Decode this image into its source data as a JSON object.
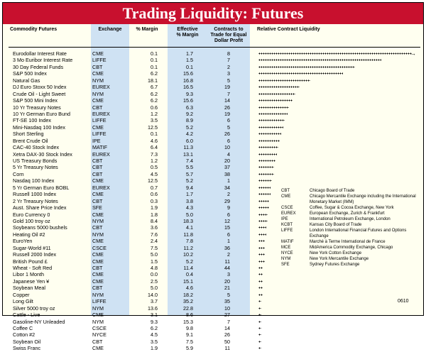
{
  "title": "Trading Liquidity: Futures",
  "headers": {
    "commodity": "Commodity Futures",
    "exchange": "Exchange",
    "margin": "% Margin",
    "effective_line1": "Effective",
    "effective_line2": "% Margin",
    "contracts_line1": "Contracts to",
    "contracts_line2": "Trade for Equal",
    "contracts_line3": "Dollar Profit",
    "liquidity": "Relative Contract Liquidity"
  },
  "rows": [
    {
      "name": "Eurodollar Interest Rate",
      "exchange": "CME",
      "margin": "0.1",
      "effective": "1.7",
      "contracts": "8",
      "liquidity": 1.0
    },
    {
      "name": "3 Mo Euribor Interest Rate",
      "exchange": "LIFFE",
      "margin": "0.1",
      "effective": "1.5",
      "contracts": "7",
      "liquidity": 0.8
    },
    {
      "name": "30 Day Federal Funds",
      "exchange": "CBT",
      "margin": "0.1",
      "effective": "0.1",
      "contracts": "2",
      "liquidity": 0.63
    },
    {
      "name": "S&P 500 Index",
      "exchange": "CME",
      "margin": "6.2",
      "effective": "15.6",
      "contracts": "3",
      "liquidity": 0.55
    },
    {
      "name": "Natural Gas",
      "exchange": "NYM",
      "margin": "18.1",
      "effective": "16.8",
      "contracts": "5",
      "liquidity": 0.34
    },
    {
      "name": "DJ Euro Stoxx 50 Index",
      "exchange": "EUREX",
      "margin": "6.7",
      "effective": "16.5",
      "contracts": "19",
      "liquidity": 0.27
    },
    {
      "name": "Crude Oil - Light Sweet",
      "exchange": "NYM",
      "margin": "6.2",
      "effective": "9.3",
      "contracts": "7",
      "liquidity": 0.24
    },
    {
      "name": "S&P 500 Mini Index",
      "exchange": "CME",
      "margin": "6.2",
      "effective": "15.6",
      "contracts": "14",
      "liquidity": 0.22
    },
    {
      "name": "10 Yr Treasury Notes",
      "exchange": "CBT",
      "margin": "0.6",
      "effective": "6.3",
      "contracts": "26",
      "liquidity": 0.2
    },
    {
      "name": "10 Yr German Euro Bund",
      "exchange": "EUREX",
      "margin": "1.2",
      "effective": "9.2",
      "contracts": "19",
      "liquidity": 0.19
    },
    {
      "name": "FT-SE 100 Index",
      "exchange": "LIFFE",
      "margin": "3.5",
      "effective": "8.9",
      "contracts": "6",
      "liquidity": 0.17
    },
    {
      "name": "Mini-Nasdaq 100 Index",
      "exchange": "CME",
      "margin": "12.5",
      "effective": "5.2",
      "contracts": "5",
      "liquidity": 0.16
    },
    {
      "name": "Short Sterling",
      "exchange": "LIFFE",
      "margin": "0.1",
      "effective": "4.2",
      "contracts": "26",
      "liquidity": 0.15
    },
    {
      "name": "Brent Crude Oil",
      "exchange": "IPE",
      "margin": "4.6",
      "effective": "6.0",
      "contracts": "6",
      "liquidity": 0.14
    },
    {
      "name": "CAC-40 Stock Index",
      "exchange": "MATIF",
      "margin": "6.4",
      "effective": "11.3",
      "contracts": "10",
      "liquidity": 0.13
    },
    {
      "name": "Xetra DAX-30 Stock Index",
      "exchange": "EUREX",
      "margin": "7.3",
      "effective": "13.1",
      "contracts": "4",
      "liquidity": 0.12
    },
    {
      "name": "US Treasury Bonds",
      "exchange": "CBT",
      "margin": "1.2",
      "effective": "7.4",
      "contracts": "20",
      "liquidity": 0.11
    },
    {
      "name": "5 Yr Treasury Notes",
      "exchange": "CBT",
      "margin": "0.5",
      "effective": "5.5",
      "contracts": "37",
      "liquidity": 0.1
    },
    {
      "name": "Corn",
      "exchange": "CBT",
      "margin": "4.5",
      "effective": "5.7",
      "contracts": "38",
      "liquidity": 0.1
    },
    {
      "name": "Nasdaq 100 Index",
      "exchange": "CME",
      "margin": "12.5",
      "effective": "5.2",
      "contracts": "1",
      "liquidity": 0.09
    },
    {
      "name": "5 Yr German Euro BOBL",
      "exchange": "EUREX",
      "margin": "0.7",
      "effective": "9.4",
      "contracts": "34",
      "liquidity": 0.08
    },
    {
      "name": "Russell 1000 Index",
      "exchange": "CME",
      "margin": "0.6",
      "effective": "1.7",
      "contracts": "2",
      "liquidity": 0.08
    },
    {
      "name": "2 Yr Treasury Notes",
      "exchange": "CBT",
      "margin": "0.3",
      "effective": "3.8",
      "contracts": "29",
      "liquidity": 0.07
    },
    {
      "name": "Aust. Share Price Index",
      "exchange": "SFE",
      "margin": "1.9",
      "effective": "4.3",
      "contracts": "9",
      "liquidity": 0.07
    },
    {
      "name": "Euro Currency 0",
      "exchange": "CME",
      "margin": "1.8",
      "effective": "5.0",
      "contracts": "6",
      "liquidity": 0.06
    },
    {
      "name": "Gold 100 troy oz",
      "exchange": "NYM",
      "margin": "8.4",
      "effective": "18.3",
      "contracts": "12",
      "liquidity": 0.06
    },
    {
      "name": "Soybeans 5000 bushels",
      "exchange": "CBT",
      "margin": "3.6",
      "effective": "4.1",
      "contracts": "15",
      "liquidity": 0.05
    },
    {
      "name": "Heating Oil #2",
      "exchange": "NYM",
      "margin": "7.6",
      "effective": "11.8",
      "contracts": "6",
      "liquidity": 0.05
    },
    {
      "name": "EuroYen",
      "exchange": "CME",
      "margin": "2.4",
      "effective": "7.8",
      "contracts": "1",
      "liquidity": 0.04
    },
    {
      "name": "Sugar-World #11",
      "exchange": "CSCE",
      "margin": "7.5",
      "effective": "11.2",
      "contracts": "36",
      "liquidity": 0.04
    },
    {
      "name": "Russell 2000 Index",
      "exchange": "CME",
      "margin": "5.0",
      "effective": "10.2",
      "contracts": "2",
      "liquidity": 0.04
    },
    {
      "name": "British Pound £",
      "exchange": "CME",
      "margin": "1.5",
      "effective": "5.2",
      "contracts": "11",
      "liquidity": 0.04
    },
    {
      "name": "Wheat - Soft Red",
      "exchange": "CBT",
      "margin": "4.8",
      "effective": "11.4",
      "contracts": "44",
      "liquidity": 0.03
    },
    {
      "name": "Libor 1 Month",
      "exchange": "CME",
      "margin": "0.0",
      "effective": "0.4",
      "contracts": "3",
      "liquidity": 0.03
    },
    {
      "name": "Japanese Yen ¥",
      "exchange": "CME",
      "margin": "2.5",
      "effective": "15.1",
      "contracts": "20",
      "liquidity": 0.03
    },
    {
      "name": "Soybean Meal",
      "exchange": "CBT",
      "margin": "5.0",
      "effective": "4.6",
      "contracts": "21",
      "liquidity": 0.03
    },
    {
      "name": "Copper",
      "exchange": "NYM",
      "margin": "14.0",
      "effective": "18.2",
      "contracts": "5",
      "liquidity": 0.03
    },
    {
      "name": "Long Gilt",
      "exchange": "LIFFE",
      "margin": "3.7",
      "effective": "35.2",
      "contracts": "35",
      "liquidity": 0.02
    },
    {
      "name": "Silver 5000 troy oz",
      "exchange": "NYM",
      "margin": "13.6",
      "effective": "22.8",
      "contracts": "10",
      "liquidity": 0.02
    },
    {
      "name": "Cattle - Live",
      "exchange": "CME",
      "margin": "3.1",
      "effective": "8.6",
      "contracts": "27",
      "liquidity": 0.02
    },
    {
      "name": "Gasoline-NY Unleaded",
      "exchange": "NYM",
      "margin": "9.3",
      "effective": "15.3",
      "contracts": "7",
      "liquidity": 0.02
    },
    {
      "name": "Coffee C",
      "exchange": "CSCE",
      "margin": "6.2",
      "effective": "9.8",
      "contracts": "14",
      "liquidity": 0.02
    },
    {
      "name": "Cotton #2",
      "exchange": "NYCE",
      "margin": "4.5",
      "effective": "9.1",
      "contracts": "26",
      "liquidity": 0.02
    },
    {
      "name": "Soybean Oil",
      "exchange": "CBT",
      "margin": "3.5",
      "effective": "7.5",
      "contracts": "50",
      "liquidity": 0.02
    },
    {
      "name": "Swiss Franc",
      "exchange": "CME",
      "margin": "1.9",
      "effective": "5.9",
      "contracts": "11",
      "liquidity": 0.02
    }
  ],
  "legend": [
    {
      "code": "CBT",
      "desc": "Chicago Board of Trade"
    },
    {
      "code": "CME",
      "desc": "Chicago Mercantile Exchange including the International Monetary Market (IMM)"
    },
    {
      "code": "CSCE",
      "desc": "Coffee, Sugar & Cocoa Exchange, New York"
    },
    {
      "code": "EUREX",
      "desc": "European Exchange, Zurich & Frankfurt"
    },
    {
      "code": "IPE",
      "desc": "International Petroleum Exchange, London"
    },
    {
      "code": "KCBT",
      "desc": "Kansas City Board of Trade"
    },
    {
      "code": "LIFFE",
      "desc": "London International Financial Futures and Options Exchange"
    },
    {
      "code": "MATIF",
      "desc": "Marché à Terme International de France"
    },
    {
      "code": "MCE",
      "desc": "MidAmerica Commodity Exchange, Chicago"
    },
    {
      "code": "NYCE",
      "desc": "New York Cotton Exchange"
    },
    {
      "code": "NYM",
      "desc": "New York Mercantile Exchange"
    },
    {
      "code": "SFE",
      "desc": "Sydney Futures Exchange"
    }
  ],
  "footer_code": "0610",
  "colors": {
    "title_bg": "#c8102e",
    "band": "#cfe2f3",
    "page_bg": "#fffff0"
  }
}
